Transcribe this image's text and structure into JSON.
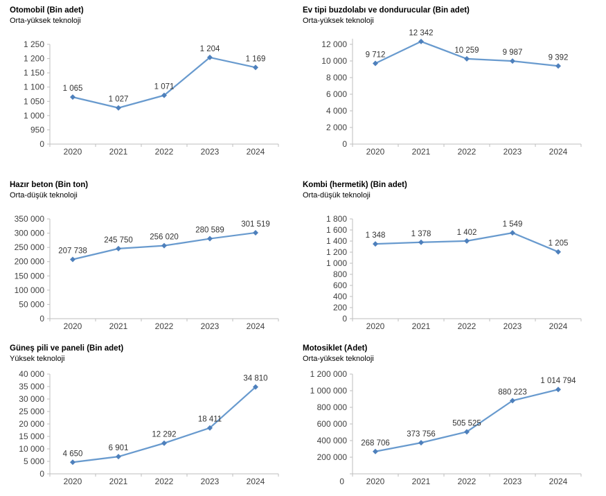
{
  "page_title": "Üretim istatistikleri grafikleri",
  "styles": {
    "background": "#ffffff",
    "line_color": "#689ACE",
    "marker_color": "#4E80BC",
    "axis_color": "#BDBDBD",
    "tick_label_color": "#404040",
    "data_label_color": "#333333",
    "title_color": "#000000"
  },
  "chart_data": [
    {
      "type": "line",
      "title": "Otomobil (Bin adet)",
      "subtitle": "Orta-yüksek teknoloji",
      "categories": [
        "2020",
        "2021",
        "2022",
        "2023",
        "2024"
      ],
      "values": [
        1065,
        1027,
        1071,
        1204,
        1169
      ],
      "value_labels": [
        "1 065",
        "1 027",
        "1 071",
        "1 204",
        "1 169"
      ],
      "y_tick_values": [
        0,
        950,
        1000,
        1050,
        1100,
        1150,
        1200,
        1250
      ],
      "y_tick_labels": [
        "0",
        "950",
        "1 000",
        "1 050",
        "1 100",
        "1 150",
        "1 200",
        "1 250"
      ],
      "zero_label_low": false,
      "grid": false,
      "legend": false
    },
    {
      "type": "line",
      "title": "Ev tipi buzdolabı ve dondurucular (Bin adet)",
      "subtitle": "Orta-yüksek teknoloji",
      "categories": [
        "2020",
        "2021",
        "2022",
        "2023",
        "2024"
      ],
      "values": [
        9712,
        12342,
        10259,
        9987,
        9392
      ],
      "value_labels": [
        "9 712",
        "12 342",
        "10 259",
        "9 987",
        "9 392"
      ],
      "y_tick_values": [
        0,
        2000,
        4000,
        6000,
        8000,
        10000,
        12000
      ],
      "y_tick_labels": [
        "0",
        "2 000",
        "4 000",
        "6 000",
        "8 000",
        "10 000",
        "12 000"
      ],
      "zero_label_low": false,
      "grid": false,
      "legend": false
    },
    {
      "type": "line",
      "title": "Hazır beton (Bin ton)",
      "subtitle": "Orta-düşük teknoloji",
      "categories": [
        "2020",
        "2021",
        "2022",
        "2023",
        "2024"
      ],
      "values": [
        207738,
        245750,
        256020,
        280589,
        301519
      ],
      "value_labels": [
        "207 738",
        "245 750",
        "256 020",
        "280 589",
        "301 519"
      ],
      "y_tick_values": [
        0,
        50000,
        100000,
        150000,
        200000,
        250000,
        300000,
        350000
      ],
      "y_tick_labels": [
        "0",
        "50 000",
        "100 000",
        "150 000",
        "200 000",
        "250 000",
        "300 000",
        "350 000"
      ],
      "zero_label_low": false,
      "grid": false,
      "legend": false
    },
    {
      "type": "line",
      "title": "Kombi (hermetik) (Bin adet)",
      "subtitle": "Orta-düşük teknoloji",
      "categories": [
        "2020",
        "2021",
        "2022",
        "2023",
        "2024"
      ],
      "values": [
        1348,
        1378,
        1402,
        1549,
        1205
      ],
      "value_labels": [
        "1 348",
        "1 378",
        "1 402",
        "1 549",
        "1 205"
      ],
      "y_tick_values": [
        0,
        200,
        400,
        600,
        800,
        1000,
        1200,
        1400,
        1600,
        1800
      ],
      "y_tick_labels": [
        "0",
        "200",
        "400",
        "600",
        "800",
        "1 000",
        "1 200",
        "1 400",
        "1 600",
        "1 800"
      ],
      "zero_label_low": false,
      "grid": false,
      "legend": false
    },
    {
      "type": "line",
      "title": "Güneş pili ve paneli (Bin adet)",
      "subtitle": "Yüksek teknoloji",
      "categories": [
        "2020",
        "2021",
        "2022",
        "2023",
        "2024"
      ],
      "values": [
        4650,
        6901,
        12292,
        18411,
        34810
      ],
      "value_labels": [
        "4 650",
        "6 901",
        "12 292",
        "18 411",
        "34 810"
      ],
      "y_tick_values": [
        0,
        5000,
        10000,
        15000,
        20000,
        25000,
        30000,
        35000,
        40000
      ],
      "y_tick_labels": [
        "0",
        "5 000",
        "10 000",
        "15 000",
        "20 000",
        "25 000",
        "30 000",
        "35 000",
        "40 000"
      ],
      "zero_label_low": false,
      "grid": false,
      "legend": false
    },
    {
      "type": "line",
      "title": "Motosiklet (Adet)",
      "subtitle": "Orta-yüksek teknoloji",
      "categories": [
        "2020",
        "2021",
        "2022",
        "2023",
        "2024"
      ],
      "values": [
        268706,
        373756,
        505525,
        880223,
        1014794
      ],
      "value_labels": [
        "268 706",
        "373 756",
        "505 525",
        "880 223",
        "1 014 794"
      ],
      "y_tick_values": [
        0,
        200000,
        400000,
        600000,
        800000,
        1000000,
        1200000
      ],
      "y_tick_labels": [
        "0",
        "200 000",
        "400 000",
        "600 000",
        "800 000",
        "1 000 000",
        "1 200 000"
      ],
      "zero_label_low": true,
      "grid": false,
      "legend": false
    }
  ]
}
